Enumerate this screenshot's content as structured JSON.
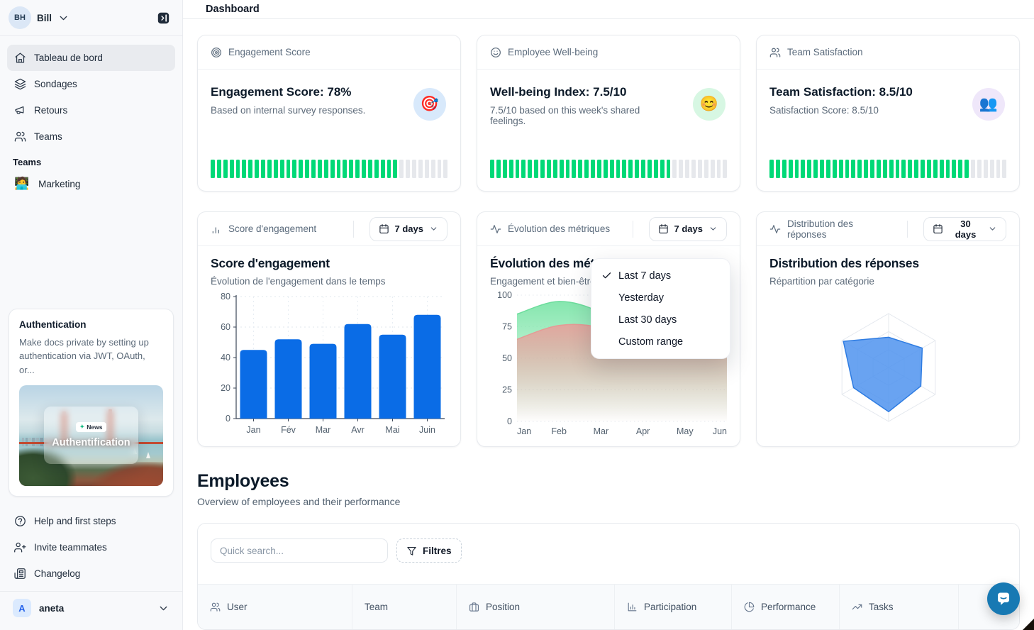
{
  "header": {
    "title": "Dashboard"
  },
  "sidebar": {
    "user": {
      "initials": "BH",
      "name": "Bill"
    },
    "nav": [
      {
        "label": "Tableau de bord",
        "icon": "home-icon",
        "active": true
      },
      {
        "label": "Sondages",
        "icon": "layers-icon",
        "active": false
      },
      {
        "label": "Retours",
        "icon": "megaphone-icon",
        "active": false
      },
      {
        "label": "Teams",
        "icon": "users-icon",
        "active": false
      }
    ],
    "teams_section": {
      "label": "Teams",
      "items": [
        {
          "label": "Marketing",
          "emoji": "🧑‍💻"
        }
      ]
    },
    "promo": {
      "title": "Authentication",
      "body": "Make docs private by setting up authentication via JWT, OAuth, or...",
      "badge_dot": "✦",
      "badge": "News",
      "caption": "Authentification"
    },
    "footer_nav": [
      {
        "label": "Help and first steps",
        "icon": "help-circle-icon"
      },
      {
        "label": "Invite teammates",
        "icon": "user-plus-icon"
      },
      {
        "label": "Changelog",
        "icon": "newspaper-icon"
      }
    ],
    "workspace": {
      "initial": "A",
      "name": "aneta"
    }
  },
  "stat_cards": [
    {
      "header_label": "Engagement Score",
      "header_icon": "target-icon",
      "title": "Engagement Score: 78%",
      "subtitle": "Based on internal survey responses.",
      "emoji": "🎯",
      "emoji_bg": "#d8e9fb",
      "progress_pct": 78
    },
    {
      "header_label": "Employee Well-being",
      "header_icon": "smile-icon",
      "title": "Well-being Index: 7.5/10",
      "subtitle": "7.5/10 based on this week's shared feelings.",
      "emoji": "😊",
      "emoji_bg": "#d7f7e3",
      "progress_pct": 75
    },
    {
      "header_label": "Team Satisfaction",
      "header_icon": "users-icon",
      "title": "Team Satisfaction: 8.5/10",
      "subtitle": "Satisfaction Score: 8.5/10",
      "emoji": "👥",
      "emoji_bg": "#efe7fa",
      "progress_pct": 85
    }
  ],
  "progress_colors": {
    "filled": "#00d977",
    "empty": "#e6e8ec",
    "segments": 38
  },
  "chart_data": [
    {
      "type": "bar",
      "header_label": "Score d'engagement",
      "header_icon": "bar-chart-icon",
      "period": "7 days",
      "title": "Score d'engagement",
      "subtitle": "Évolution de l'engagement dans le temps",
      "categories": [
        "Jan",
        "Fév",
        "Mar",
        "Avr",
        "Mai",
        "Juin"
      ],
      "values": [
        45,
        52,
        49,
        62,
        55,
        68
      ],
      "ylim": [
        0,
        80
      ],
      "yticks": [
        0,
        20,
        40,
        60,
        80
      ],
      "bar_color": "#0a6ce6",
      "grid": true,
      "legend": false
    },
    {
      "type": "area",
      "header_label": "Évolution des métriques",
      "header_icon": "activity-icon",
      "period": "7 days",
      "title": "Évolution des métriques",
      "subtitle": "Engagement et bien-être",
      "x": [
        "Jan",
        "Feb",
        "Mar",
        "Apr",
        "May",
        "Jun"
      ],
      "series": [
        {
          "name": "engagement",
          "color": "#7fe5aa",
          "stroke": "#6cdd9c",
          "values": [
            85,
            95,
            86,
            62,
            66,
            70
          ]
        },
        {
          "name": "bien-être",
          "color": "#e7a19c",
          "stroke": "#e49a95",
          "values": [
            65,
            76,
            74,
            58,
            63,
            65
          ]
        }
      ],
      "ylim": [
        0,
        100
      ],
      "yticks": [
        0,
        25,
        50,
        75,
        100
      ],
      "grid": true,
      "legend": false
    },
    {
      "type": "radar",
      "header_label": "Distribution des réponses",
      "header_icon": "activity-icon",
      "period": "30 days",
      "title": "Distribution des réponses",
      "subtitle": "Répartition par catégorie",
      "axes_count": 6,
      "values_pct": [
        56,
        72,
        69,
        82,
        75,
        97
      ],
      "rings": 3,
      "fill_color": "#4f93ee",
      "stroke_color": "#2e7ce2",
      "grid_color": "#e4e8ee",
      "legend": false
    }
  ],
  "period_dropdown": {
    "items": [
      "Last 7 days",
      "Yesterday",
      "Last 30 days",
      "Custom range"
    ],
    "selected_index": 0
  },
  "employees": {
    "title": "Employees",
    "subtitle": "Overview of employees and their performance",
    "search_placeholder": "Quick search...",
    "filters_label": "Filtres",
    "columns": [
      {
        "label": "User",
        "icon": "users-icon"
      },
      {
        "label": "Team",
        "icon": ""
      },
      {
        "label": "Position",
        "icon": "briefcase-icon"
      },
      {
        "label": "Participation",
        "icon": "column-chart-icon"
      },
      {
        "label": "Performance",
        "icon": "pie-chart-icon"
      },
      {
        "label": "Tasks",
        "icon": "trend-up-icon"
      }
    ]
  }
}
